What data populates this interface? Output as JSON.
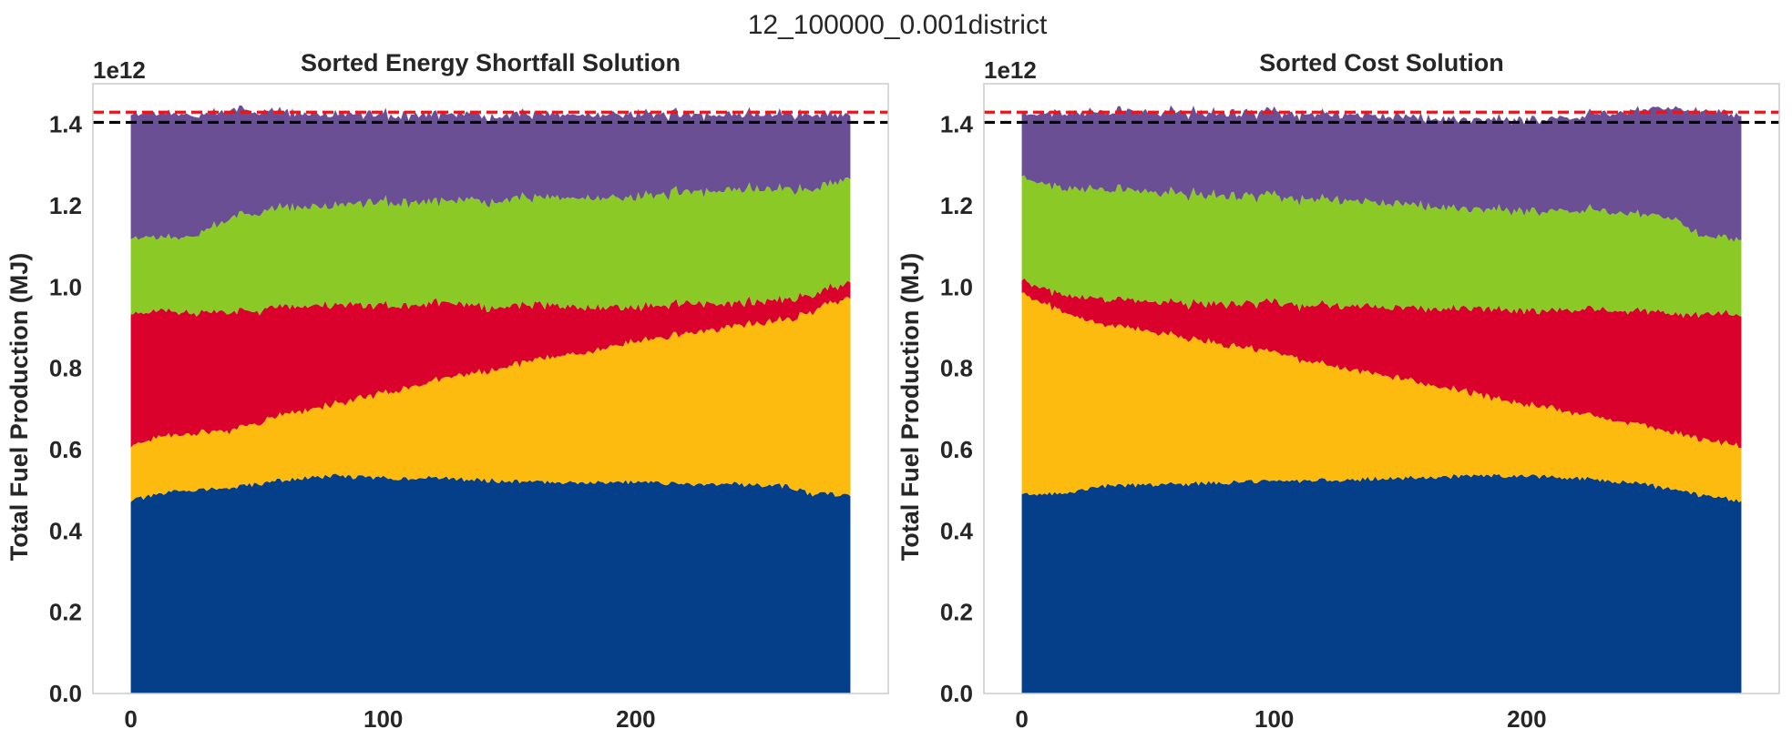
{
  "figure": {
    "suptitle": "12_100000_0.001district"
  },
  "colors": {
    "layers": [
      "#053f8a",
      "#fdbb10",
      "#da012d",
      "#8bc927",
      "#6b4f94"
    ],
    "ref_red": "#e8161b",
    "ref_black": "#000000",
    "frame": "#cccccc",
    "text": "#262626"
  },
  "chart_data": [
    {
      "type": "area",
      "subtype": "stacked",
      "title": "Sorted Energy Shortfall Solution",
      "xlabel": "",
      "ylabel": "Total Fuel Production (MJ)",
      "y_offset_label": "1e12",
      "xlim": [
        -15,
        300
      ],
      "ylim": [
        0,
        1.5
      ],
      "xticks": [
        0,
        100,
        200
      ],
      "xtick_labels": [
        "0",
        "100",
        "200"
      ],
      "yticks": [
        0.0,
        0.2,
        0.4,
        0.6,
        0.8,
        1.0,
        1.2,
        1.4
      ],
      "ytick_labels": [
        "0.0",
        "0.2",
        "0.4",
        "0.6",
        "0.8",
        "1.0",
        "1.2",
        "1.4"
      ],
      "grid": false,
      "x": [
        0,
        20,
        40,
        60,
        80,
        100,
        120,
        140,
        160,
        180,
        200,
        220,
        240,
        260,
        270,
        285
      ],
      "series": [
        {
          "values": [
            0.475,
            0.5,
            0.505,
            0.525,
            0.535,
            0.53,
            0.53,
            0.525,
            0.52,
            0.52,
            0.52,
            0.515,
            0.515,
            0.51,
            0.49,
            0.49
          ]
        },
        {
          "values": [
            0.135,
            0.14,
            0.14,
            0.16,
            0.175,
            0.21,
            0.24,
            0.27,
            0.3,
            0.32,
            0.345,
            0.37,
            0.39,
            0.41,
            0.45,
            0.49
          ]
        },
        {
          "values": [
            0.325,
            0.3,
            0.29,
            0.265,
            0.245,
            0.215,
            0.19,
            0.16,
            0.135,
            0.11,
            0.085,
            0.075,
            0.055,
            0.05,
            0.04,
            0.035
          ]
        },
        {
          "values": [
            0.185,
            0.18,
            0.23,
            0.245,
            0.245,
            0.255,
            0.25,
            0.26,
            0.265,
            0.27,
            0.27,
            0.275,
            0.28,
            0.27,
            0.26,
            0.255
          ]
        },
        {
          "values": [
            0.305,
            0.305,
            0.265,
            0.235,
            0.225,
            0.215,
            0.215,
            0.21,
            0.205,
            0.205,
            0.205,
            0.19,
            0.185,
            0.185,
            0.185,
            0.155
          ]
        }
      ],
      "reference_lines": [
        {
          "y": 1.43,
          "color": "#e8161b",
          "style": "dashed"
        },
        {
          "y": 1.405,
          "color": "#000000",
          "style": "dashed"
        }
      ]
    },
    {
      "type": "area",
      "subtype": "stacked",
      "title": "Sorted Cost Solution",
      "xlabel": "",
      "ylabel": "Total Fuel Production (MJ)",
      "y_offset_label": "1e12",
      "xlim": [
        -15,
        300
      ],
      "ylim": [
        0,
        1.5
      ],
      "xticks": [
        0,
        100,
        200
      ],
      "xtick_labels": [
        "0",
        "100",
        "200"
      ],
      "yticks": [
        0.0,
        0.2,
        0.4,
        0.6,
        0.8,
        1.0,
        1.2,
        1.4
      ],
      "ytick_labels": [
        "0.0",
        "0.2",
        "0.4",
        "0.6",
        "0.8",
        "1.0",
        "1.2",
        "1.4"
      ],
      "grid": false,
      "x": [
        0,
        15,
        30,
        60,
        90,
        120,
        150,
        180,
        200,
        220,
        240,
        260,
        270,
        285
      ],
      "series": [
        {
          "values": [
            0.49,
            0.49,
            0.51,
            0.515,
            0.52,
            0.525,
            0.53,
            0.535,
            0.535,
            0.53,
            0.52,
            0.5,
            0.485,
            0.475
          ]
        },
        {
          "values": [
            0.495,
            0.45,
            0.4,
            0.365,
            0.33,
            0.285,
            0.245,
            0.2,
            0.175,
            0.16,
            0.145,
            0.14,
            0.135,
            0.135
          ]
        },
        {
          "values": [
            0.035,
            0.04,
            0.06,
            0.08,
            0.11,
            0.145,
            0.175,
            0.21,
            0.23,
            0.255,
            0.275,
            0.295,
            0.31,
            0.325
          ]
        },
        {
          "values": [
            0.255,
            0.26,
            0.27,
            0.27,
            0.265,
            0.26,
            0.255,
            0.245,
            0.245,
            0.245,
            0.24,
            0.23,
            0.19,
            0.185
          ]
        },
        {
          "values": [
            0.155,
            0.185,
            0.19,
            0.2,
            0.205,
            0.21,
            0.215,
            0.22,
            0.225,
            0.23,
            0.25,
            0.275,
            0.31,
            0.305
          ]
        }
      ],
      "reference_lines": [
        {
          "y": 1.43,
          "color": "#e8161b",
          "style": "dashed"
        },
        {
          "y": 1.405,
          "color": "#000000",
          "style": "dashed"
        }
      ]
    }
  ]
}
